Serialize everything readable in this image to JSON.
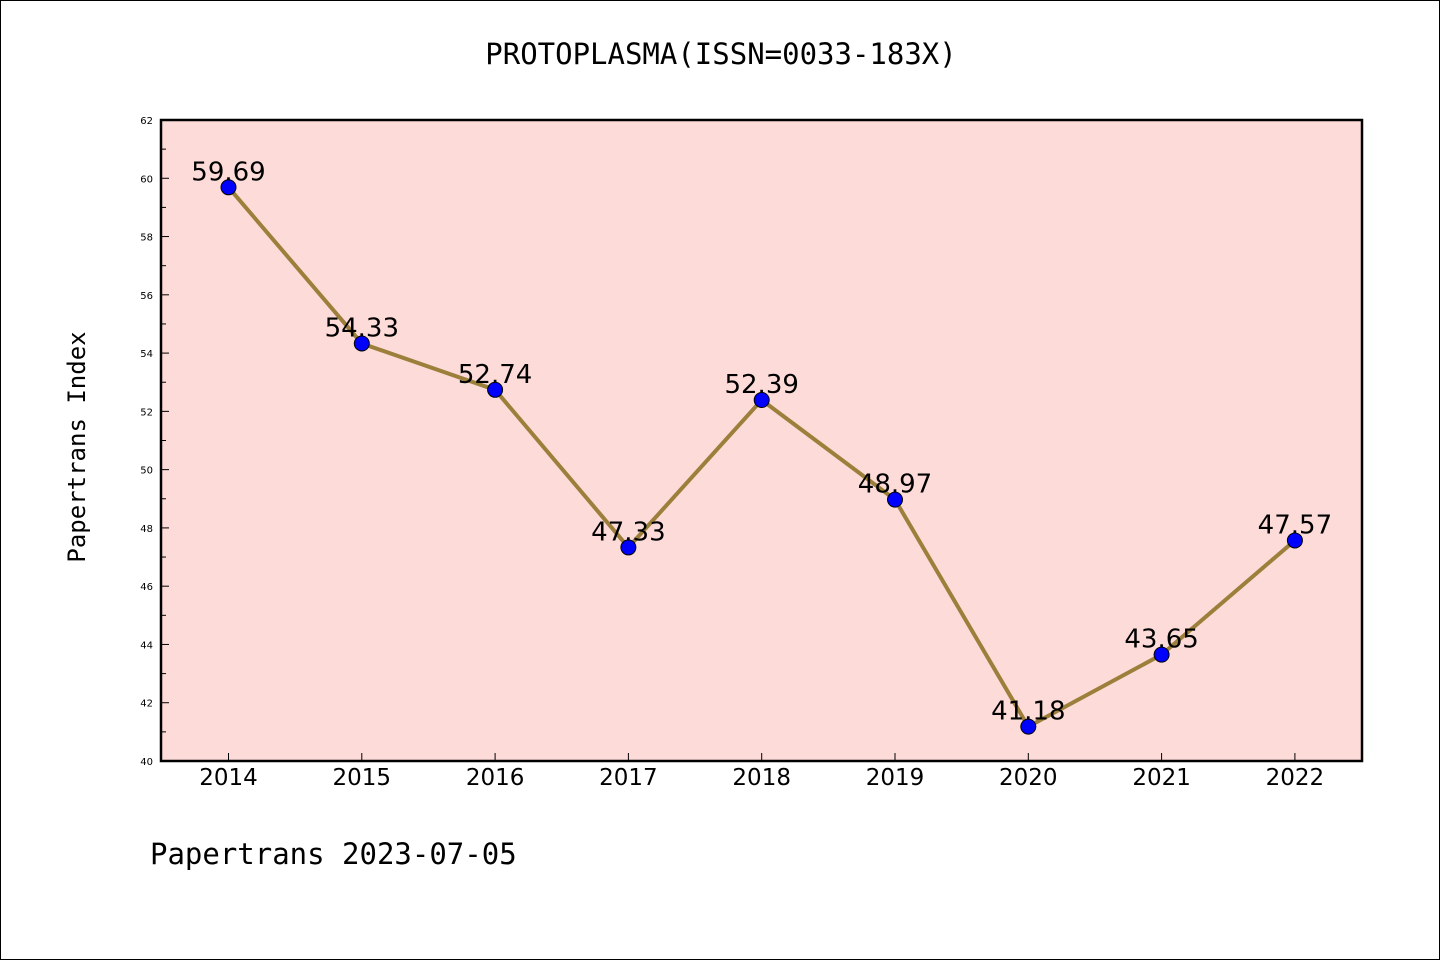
{
  "chart_data": {
    "type": "line",
    "title": "PROTOPLASMA(ISSN=0033-183X)",
    "xlabel": "",
    "ylabel": "Papertrans Index",
    "categories": [
      "2014",
      "2015",
      "2016",
      "2017",
      "2018",
      "2019",
      "2020",
      "2021",
      "2022"
    ],
    "series": [
      {
        "values": [
          59.69,
          54.33,
          52.74,
          47.33,
          52.39,
          48.97,
          41.18,
          43.65,
          47.57
        ],
        "data_labels": [
          "59.69",
          "54.33",
          "52.74",
          "47.33",
          "52.39",
          "48.97",
          "41.18",
          "43.65",
          "47.57"
        ]
      }
    ],
    "ylim": [
      40,
      62
    ],
    "yticks": [
      "40",
      "42",
      "44",
      "46",
      "48",
      "50",
      "52",
      "54",
      "56",
      "58",
      "60",
      "62"
    ],
    "grid": false,
    "colors": {
      "plot_background": "#FDDBD8",
      "line": "#9B7F3A",
      "marker": "#0000FF"
    }
  },
  "footer": {
    "text": "Papertrans 2023-07-05"
  }
}
